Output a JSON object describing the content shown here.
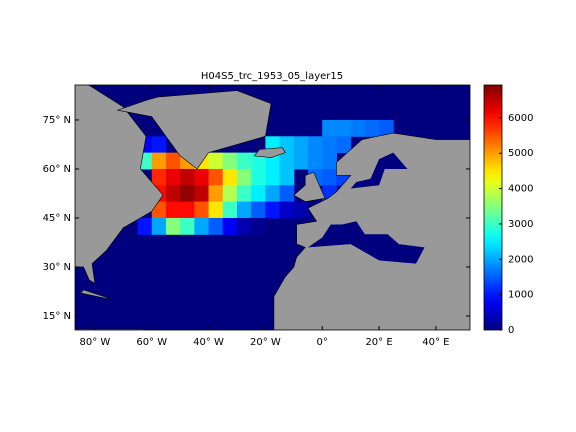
{
  "chart_data": {
    "type": "map",
    "title": "H04S5_trc_1953_05_layer15",
    "xlim": [
      -87,
      52
    ],
    "ylim": [
      10.7,
      85.7
    ],
    "xticks": [
      {
        "value": -80,
        "label": "80° W"
      },
      {
        "value": -60,
        "label": "60° W"
      },
      {
        "value": -40,
        "label": "40° W"
      },
      {
        "value": -20,
        "label": "20° W"
      },
      {
        "value": 0,
        "label": "0°"
      },
      {
        "value": 20,
        "label": "20° E"
      },
      {
        "value": 40,
        "label": "40° E"
      }
    ],
    "yticks": [
      {
        "value": 15,
        "label": "15° N"
      },
      {
        "value": 30,
        "label": "30° N"
      },
      {
        "value": 45,
        "label": "45° N"
      },
      {
        "value": 60,
        "label": "60° N"
      },
      {
        "value": 75,
        "label": "75° N"
      }
    ],
    "colormap": "jet",
    "clim": [
      0,
      6930
    ],
    "cbticks": [
      0,
      1000,
      2000,
      3000,
      4000,
      5000,
      6000
    ],
    "land_color": "#999999",
    "ocean_color": "#00007f",
    "field": {
      "lons": [
        -62.5,
        -57.5,
        -52.5,
        -47.5,
        -42.5,
        -37.5,
        -32.5,
        -27.5,
        -22.5,
        -17.5,
        -12.5,
        -7.5,
        -2.5,
        2.5,
        7.5,
        12.5,
        17.5,
        22.5
      ],
      "lats": [
        72.5,
        67.5,
        62.5,
        57.5,
        52.5,
        47.5,
        42.5
      ],
      "values": [
        [
          null,
          null,
          null,
          null,
          null,
          null,
          null,
          null,
          null,
          null,
          null,
          null,
          null,
          1800,
          1800,
          1700,
          1600,
          1500
        ],
        [
          800,
          1000,
          null,
          null,
          null,
          null,
          null,
          null,
          null,
          2500,
          2200,
          2000,
          1800,
          1700,
          1600,
          null,
          null,
          null
        ],
        [
          3000,
          5000,
          5500,
          5000,
          4500,
          4000,
          3500,
          3000,
          2800,
          2500,
          2200,
          2000,
          1800,
          1700,
          null,
          null,
          null,
          null
        ],
        [
          null,
          5800,
          6200,
          6500,
          6200,
          5500,
          4500,
          3500,
          2800,
          2500,
          2200,
          null,
          1600,
          1500,
          1300,
          null,
          800,
          800
        ],
        [
          null,
          6000,
          6500,
          6800,
          6500,
          5000,
          3800,
          3000,
          2500,
          2000,
          1500,
          null,
          null,
          1200,
          null,
          null,
          null,
          null
        ],
        [
          null,
          5500,
          6000,
          6000,
          5500,
          4500,
          3000,
          2000,
          1500,
          1000,
          500,
          300,
          null,
          null,
          null,
          null,
          null,
          null
        ],
        [
          1000,
          2000,
          3500,
          3000,
          2000,
          1500,
          800,
          300,
          100,
          null,
          null,
          null,
          null,
          null,
          null,
          null,
          null,
          null
        ]
      ]
    }
  }
}
